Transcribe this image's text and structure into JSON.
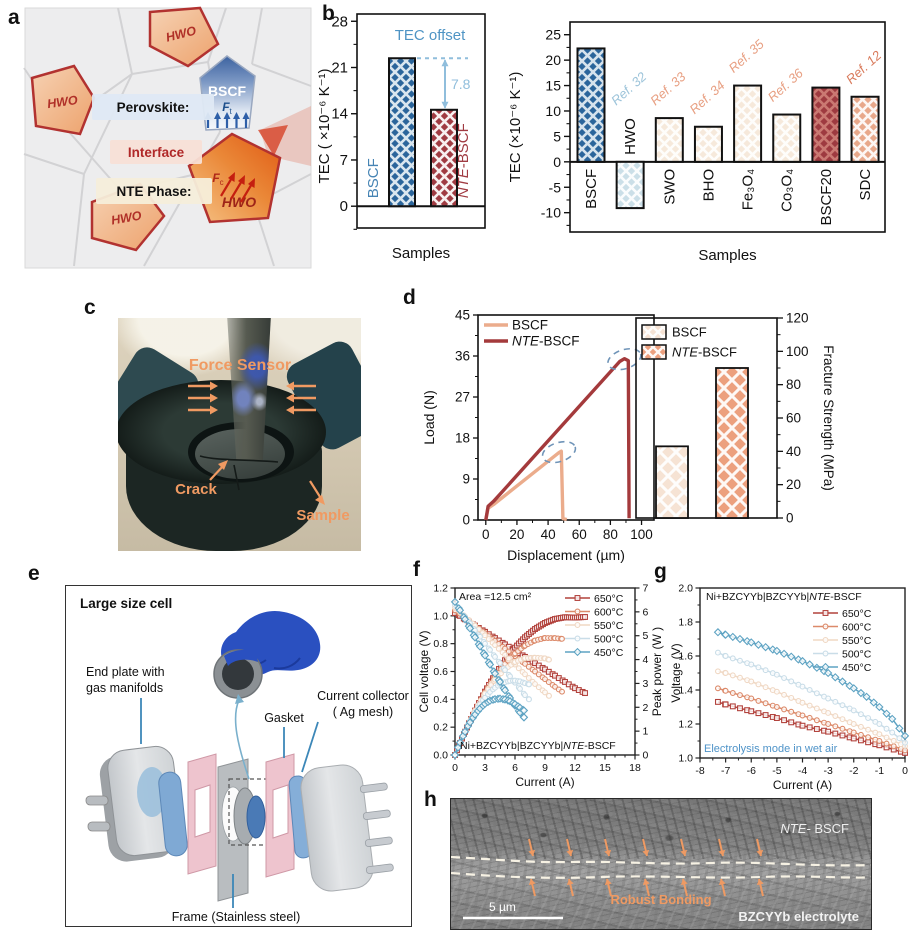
{
  "figure": {
    "panels": [
      "a",
      "b",
      "c",
      "d",
      "e",
      "f",
      "g",
      "h"
    ]
  },
  "panel_a": {
    "grain_label": "HWO",
    "perovskite_label": "Perovskite:",
    "interface_label": "Interface",
    "nte_phase_label": "NTE Phase:",
    "bscf_label": "BSCF",
    "hwo_label": "HWO",
    "force_tensile": "F",
    "force_tensile_sub": "t",
    "force_compressive": "F",
    "force_compressive_sub": "c"
  },
  "panel_c": {
    "force_sensor_label": "Force Sensor",
    "crack_label": "Crack",
    "sample_label": "Sample",
    "label_color": "#f09a62"
  },
  "panel_e": {
    "title": "Large size cell",
    "end_plate_label_1": "End plate with",
    "end_plate_label_2": "gas manifolds",
    "gasket_label": "Gasket",
    "collector_label_1": "Current collector",
    "collector_label_2": "( Ag mesh)",
    "frame_label": "Frame (Stainless steel)"
  },
  "panel_h": {
    "top_label_italic": "NTE-",
    "top_label_rest": " BSCF",
    "bottom_label": "BZCYYb electrolyte",
    "bonding_label": "Robust Bonding",
    "scale_label": "5 µm",
    "arrow_color": "#ef9a63"
  },
  "chart_data": [
    {
      "id": "tec_pair",
      "type": "bar",
      "xlabel": "Samples",
      "ylabel": "TEC ( ×10⁻⁶ K⁻¹)",
      "ylim": [
        -3.3,
        29.1
      ],
      "yticks": [
        0,
        7,
        14,
        21,
        28
      ],
      "bars": [
        {
          "label": "BSCF",
          "value": 22.4,
          "color": "#2B659B",
          "lattice": "#E9F1F7",
          "label_color": "#4684B4"
        },
        {
          "label": "NTE-BSCF",
          "value": 14.6,
          "color": "#A03B42",
          "lattice": "#FFFFFF",
          "label_color": "#A03B42"
        }
      ],
      "annotations": {
        "offset_title": "TEC offset",
        "offset_value": "7.8",
        "title_color": "#4F94C4",
        "arrow_color": "#90BEDC"
      }
    },
    {
      "id": "tec_compare",
      "type": "bar",
      "xlabel": "Samples",
      "ylabel": "TEC (×10⁻⁶ K⁻¹)",
      "ylim": [
        -13.8,
        27.5
      ],
      "yticks": [
        -10,
        -5,
        0,
        5,
        10,
        15,
        20,
        25
      ],
      "bars": [
        {
          "label": "BSCF",
          "value": 22.3,
          "color": "#2B659B",
          "lattice": "#E9F1F7",
          "ref": null
        },
        {
          "label": "HWO",
          "value": -9.1,
          "color": "#CBDFE8",
          "lattice": "#FFFFFF",
          "ref": "Ref. 32",
          "ref_color": "#9DC4DA"
        },
        {
          "label": "SWO",
          "value": 8.6,
          "color": "#F6E9DB",
          "lattice": "#FFFFFF",
          "ref": "Ref. 33",
          "ref_color": "#E8A083"
        },
        {
          "label": "BHO",
          "value": 6.9,
          "color": "#F6E9DB",
          "lattice": "#FFFFFF",
          "ref": "Ref. 34",
          "ref_color": "#E8A083"
        },
        {
          "label": "Fe₃O₄",
          "value": 15.0,
          "color": "#F6E9DB",
          "lattice": "#FFFFFF",
          "ref": "Ref. 35",
          "ref_color": "#E8A083"
        },
        {
          "label": "Co₃O₄",
          "value": 9.3,
          "color": "#F6E9DB",
          "lattice": "#FFFFFF",
          "ref": "Ref. 36",
          "ref_color": "#E8A083"
        },
        {
          "label": "BSCF20",
          "value": 14.6,
          "color": "#9E3A40",
          "lattice": "#D08078",
          "ref": null
        },
        {
          "label": "SDC",
          "value": 12.8,
          "color": "#E8A88B",
          "lattice": "#FFFFFF",
          "ref": "Ref. 12",
          "ref_color": "#D97B5C"
        }
      ]
    },
    {
      "id": "load_displacement",
      "type": "line",
      "xlabel": "Displacement (µm)",
      "ylabel": "Load (N)",
      "xlim": [
        -5,
        108
      ],
      "xticks": [
        0,
        20,
        40,
        60,
        80,
        100
      ],
      "ylim": [
        0,
        45
      ],
      "yticks": [
        0,
        9,
        18,
        27,
        36,
        45
      ],
      "series": [
        {
          "name": "BSCF",
          "color": "#EBAC8C",
          "points": [
            [
              0,
              0
            ],
            [
              1.5,
              2.6
            ],
            [
              5,
              3.4
            ],
            [
              47,
              14.8
            ],
            [
              48.5,
              15.1
            ],
            [
              49.5,
              0.3
            ],
            [
              52,
              0.1
            ]
          ]
        },
        {
          "name": "NTE-BSCF",
          "color": "#A43A3C",
          "points": [
            [
              0,
              0
            ],
            [
              1.5,
              3.0
            ],
            [
              5,
              4.1
            ],
            [
              86,
              34.8
            ],
            [
              89,
              35.4
            ],
            [
              91.5,
              35.0
            ],
            [
              92,
              0.4
            ]
          ]
        }
      ],
      "ellipses": [
        {
          "cx": 47,
          "cy": 14.9
        },
        {
          "cx": 89,
          "cy": 35.3
        }
      ],
      "ellipse_color": "#6F94B8"
    },
    {
      "id": "fracture",
      "type": "bar",
      "ylabel_right": "Fracture Strength (MPa)",
      "ylim": [
        0,
        120
      ],
      "yticks": [
        0,
        20,
        40,
        60,
        80,
        100,
        120
      ],
      "bars": [
        {
          "label": "BSCF",
          "value": 43,
          "color": "#F6E3D4",
          "lattice": "#FFFFFF"
        },
        {
          "label": "NTE-BSCF",
          "value": 90,
          "color": "#ECA07E",
          "lattice": "#FFFFFF"
        }
      ]
    },
    {
      "id": "fuel_cell",
      "type": "line",
      "xlabel": "Current (A)",
      "ylabel": "Cell voltage (V)",
      "y2label": "Peak power (W )",
      "xlim": [
        0,
        18
      ],
      "xticks": [
        0,
        3,
        6,
        9,
        12,
        15,
        18
      ],
      "ylim": [
        0,
        1.2
      ],
      "yticks": [
        "0.0",
        "0.2",
        "0.4",
        "0.6",
        "0.8",
        "1.0",
        "1.2"
      ],
      "y2lim": [
        0,
        7
      ],
      "y2ticks": [
        0,
        1,
        2,
        3,
        4,
        5,
        6,
        7
      ],
      "annotations": {
        "area": "Area =12.5 cm²",
        "cell": "Ni+BZCYYb|BZCYYb|NTE-BSCF"
      },
      "series": [
        {
          "name": "650°C",
          "color": "#B2423C",
          "marker": "square",
          "thick": true,
          "points": [
            [
              0,
              1.02
            ],
            [
              0.5,
              1.0
            ],
            [
              1,
              0.975
            ],
            [
              2,
              0.93
            ],
            [
              3,
              0.885
            ],
            [
              4,
              0.84
            ],
            [
              5,
              0.795
            ],
            [
              6,
              0.75
            ],
            [
              7,
              0.705
            ],
            [
              8,
              0.66
            ],
            [
              9,
              0.615
            ],
            [
              10,
              0.57
            ],
            [
              11,
              0.525
            ],
            [
              12,
              0.48
            ],
            [
              13,
              0.445
            ]
          ]
        },
        {
          "name": "600°C",
          "color": "#DC8A6A",
          "marker": "circle",
          "points": [
            [
              0,
              1.04
            ],
            [
              0.5,
              1.015
            ],
            [
              1,
              0.985
            ],
            [
              2,
              0.93
            ],
            [
              3,
              0.875
            ],
            [
              4,
              0.82
            ],
            [
              5,
              0.765
            ],
            [
              6,
              0.71
            ],
            [
              7,
              0.655
            ],
            [
              8,
              0.6
            ],
            [
              9,
              0.545
            ],
            [
              10,
              0.49
            ],
            [
              10.7,
              0.455
            ]
          ]
        },
        {
          "name": "550°C",
          "color": "#F0D8C4",
          "marker": "circle",
          "points": [
            [
              0,
              1.06
            ],
            [
              0.5,
              1.03
            ],
            [
              1,
              0.995
            ],
            [
              2,
              0.93
            ],
            [
              3,
              0.86
            ],
            [
              4,
              0.79
            ],
            [
              5,
              0.72
            ],
            [
              6,
              0.65
            ],
            [
              7,
              0.58
            ],
            [
              8,
              0.51
            ],
            [
              9,
              0.45
            ],
            [
              9.4,
              0.425
            ]
          ]
        },
        {
          "name": "500°C",
          "color": "#C9DDE8",
          "marker": "circle",
          "points": [
            [
              0,
              1.08
            ],
            [
              0.5,
              1.04
            ],
            [
              1,
              0.99
            ],
            [
              1.5,
              0.945
            ],
            [
              2,
              0.895
            ],
            [
              2.5,
              0.85
            ],
            [
              3,
              0.8
            ],
            [
              3.5,
              0.755
            ],
            [
              4,
              0.705
            ],
            [
              4.5,
              0.66
            ],
            [
              5,
              0.61
            ],
            [
              5.5,
              0.565
            ],
            [
              6,
              0.52
            ],
            [
              6.5,
              0.475
            ],
            [
              7,
              0.43
            ],
            [
              7.4,
              0.4
            ]
          ]
        },
        {
          "name": "450°C",
          "color": "#5EA3C3",
          "marker": "diamond",
          "points": [
            [
              0,
              1.1
            ],
            [
              0.5,
              1.04
            ],
            [
              1,
              0.975
            ],
            [
              1.5,
              0.91
            ],
            [
              2,
              0.845
            ],
            [
              2.5,
              0.78
            ],
            [
              3,
              0.715
            ],
            [
              3.5,
              0.65
            ],
            [
              4,
              0.585
            ],
            [
              4.5,
              0.525
            ],
            [
              5,
              0.465
            ],
            [
              5.5,
              0.41
            ],
            [
              6,
              0.355
            ],
            [
              6.5,
              0.305
            ],
            [
              6.9,
              0.27
            ]
          ]
        }
      ]
    },
    {
      "id": "electrolysis",
      "type": "line",
      "xlabel": "Current (A)",
      "ylabel": "Voltage (V)",
      "xlim": [
        -8,
        0
      ],
      "xticks": [
        -8,
        -7,
        -6,
        -5,
        -4,
        -3,
        -2,
        -1,
        0
      ],
      "ylim": [
        1.0,
        2.0
      ],
      "yticks": [
        "1.0",
        "1.2",
        "1.4",
        "1.6",
        "1.8",
        "2.0"
      ],
      "annotations": {
        "cell": "Ni+BZCYYb|BZCYYb|NTE-BSCF",
        "mode": "Electrolysis mode in wet air",
        "mode_color": "#4E93C8"
      },
      "series": [
        {
          "name": "650°C",
          "color": "#B2423C",
          "marker": "square",
          "points": [
            [
              0,
              1.03
            ],
            [
              -1,
              1.075
            ],
            [
              -2,
              1.115
            ],
            [
              -3,
              1.155
            ],
            [
              -4,
              1.19
            ],
            [
              -5,
              1.235
            ],
            [
              -6,
              1.275
            ],
            [
              -7,
              1.315
            ],
            [
              -7.3,
              1.33
            ]
          ]
        },
        {
          "name": "600°C",
          "color": "#DC8A6A",
          "marker": "circle",
          "points": [
            [
              0,
              1.045
            ],
            [
              -1,
              1.1
            ],
            [
              -2,
              1.15
            ],
            [
              -3,
              1.2
            ],
            [
              -4,
              1.25
            ],
            [
              -5,
              1.3
            ],
            [
              -6,
              1.35
            ],
            [
              -7,
              1.395
            ],
            [
              -7.3,
              1.41
            ]
          ]
        },
        {
          "name": "550°C",
          "color": "#F0D8C4",
          "marker": "circle",
          "points": [
            [
              0,
              1.07
            ],
            [
              -1,
              1.14
            ],
            [
              -2,
              1.2
            ],
            [
              -3,
              1.265
            ],
            [
              -4,
              1.325
            ],
            [
              -5,
              1.39
            ],
            [
              -6,
              1.45
            ],
            [
              -7,
              1.5
            ],
            [
              -7.3,
              1.51
            ]
          ]
        },
        {
          "name": "500°C",
          "color": "#C9DDE8",
          "marker": "circle",
          "points": [
            [
              0,
              1.09
            ],
            [
              -0.5,
              1.15
            ],
            [
              -1,
              1.2
            ],
            [
              -2,
              1.28
            ],
            [
              -3,
              1.35
            ],
            [
              -4,
              1.42
            ],
            [
              -5,
              1.49
            ],
            [
              -6,
              1.55
            ],
            [
              -7,
              1.6
            ],
            [
              -7.3,
              1.62
            ]
          ]
        },
        {
          "name": "450°C",
          "color": "#5EA3C3",
          "marker": "diamond",
          "points": [
            [
              0,
              1.13
            ],
            [
              -0.5,
              1.23
            ],
            [
              -1,
              1.3
            ],
            [
              -1.5,
              1.36
            ],
            [
              -2,
              1.41
            ],
            [
              -3,
              1.5
            ],
            [
              -4,
              1.57
            ],
            [
              -5,
              1.63
            ],
            [
              -6,
              1.68
            ],
            [
              -7,
              1.725
            ],
            [
              -7.3,
              1.74
            ]
          ]
        }
      ]
    }
  ]
}
